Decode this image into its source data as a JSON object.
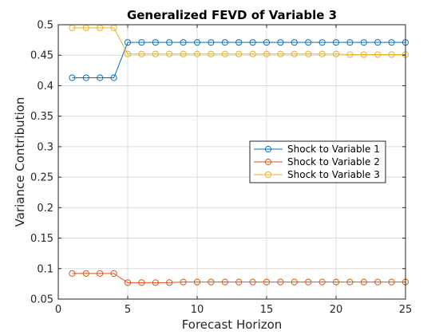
{
  "chart_data": {
    "type": "line",
    "title": "Generalized FEVD of Variable 3",
    "xlabel": "Forecast Horizon",
    "ylabel": "Variance Contribution",
    "xlim": [
      0,
      25
    ],
    "ylim": [
      0.05,
      0.5
    ],
    "xticks": [
      0,
      5,
      10,
      15,
      20,
      25
    ],
    "xtick_labels": [
      "0",
      "5",
      "10",
      "15",
      "20",
      "25"
    ],
    "yticks": [
      0.05,
      0.1,
      0.15,
      0.2,
      0.25,
      0.3,
      0.35,
      0.4,
      0.45,
      0.5
    ],
    "ytick_labels": [
      "0.05",
      "0.1",
      "0.15",
      "0.2",
      "0.25",
      "0.3",
      "0.35",
      "0.4",
      "0.45",
      "0.5"
    ],
    "grid": true,
    "legend_position": "right-center",
    "x": [
      1,
      2,
      3,
      4,
      5,
      6,
      7,
      8,
      9,
      10,
      11,
      12,
      13,
      14,
      15,
      16,
      17,
      18,
      19,
      20,
      21,
      22,
      23,
      24,
      25
    ],
    "series": [
      {
        "name": "Shock to Variable 1",
        "color": "#0072BD",
        "marker": "circle",
        "values": [
          0.413,
          0.413,
          0.413,
          0.413,
          0.471,
          0.471,
          0.471,
          0.471,
          0.471,
          0.471,
          0.471,
          0.471,
          0.471,
          0.471,
          0.471,
          0.471,
          0.471,
          0.471,
          0.471,
          0.471,
          0.471,
          0.471,
          0.471,
          0.471,
          0.471
        ]
      },
      {
        "name": "Shock to Variable 2",
        "color": "#D95319",
        "marker": "circle",
        "values": [
          0.092,
          0.092,
          0.092,
          0.092,
          0.077,
          0.077,
          0.077,
          0.077,
          0.078,
          0.078,
          0.078,
          0.078,
          0.078,
          0.078,
          0.078,
          0.078,
          0.078,
          0.078,
          0.078,
          0.078,
          0.078,
          0.078,
          0.078,
          0.078,
          0.078
        ]
      },
      {
        "name": "Shock to Variable 3",
        "color": "#EDB120",
        "marker": "circle",
        "values": [
          0.495,
          0.495,
          0.495,
          0.495,
          0.452,
          0.452,
          0.452,
          0.452,
          0.452,
          0.452,
          0.452,
          0.452,
          0.452,
          0.452,
          0.452,
          0.452,
          0.452,
          0.452,
          0.452,
          0.452,
          0.451,
          0.451,
          0.451,
          0.451,
          0.451
        ]
      }
    ]
  }
}
